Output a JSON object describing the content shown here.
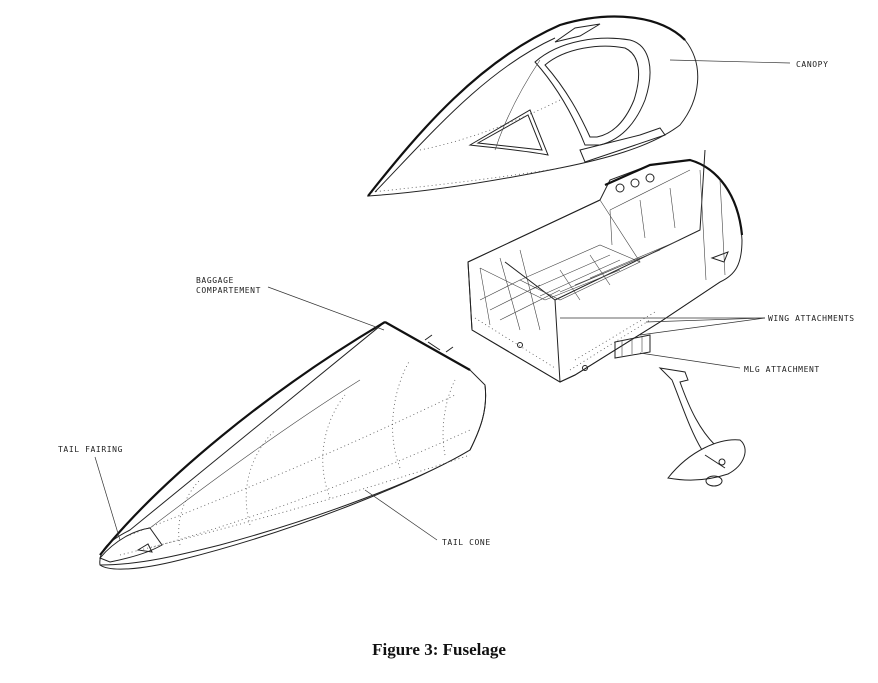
{
  "labels": {
    "canopy": "CANOPY",
    "baggage_line1": "BAGGAGE",
    "baggage_line2": "COMPARTEMENT",
    "wing_attachments": "WING ATTACHMENTS",
    "mlg_attachment": "MLG ATTACHMENT",
    "tail_fairing": "TAIL FAIRING",
    "tail_cone": "TAIL CONE"
  },
  "caption": "Figure 3: Fuselage"
}
